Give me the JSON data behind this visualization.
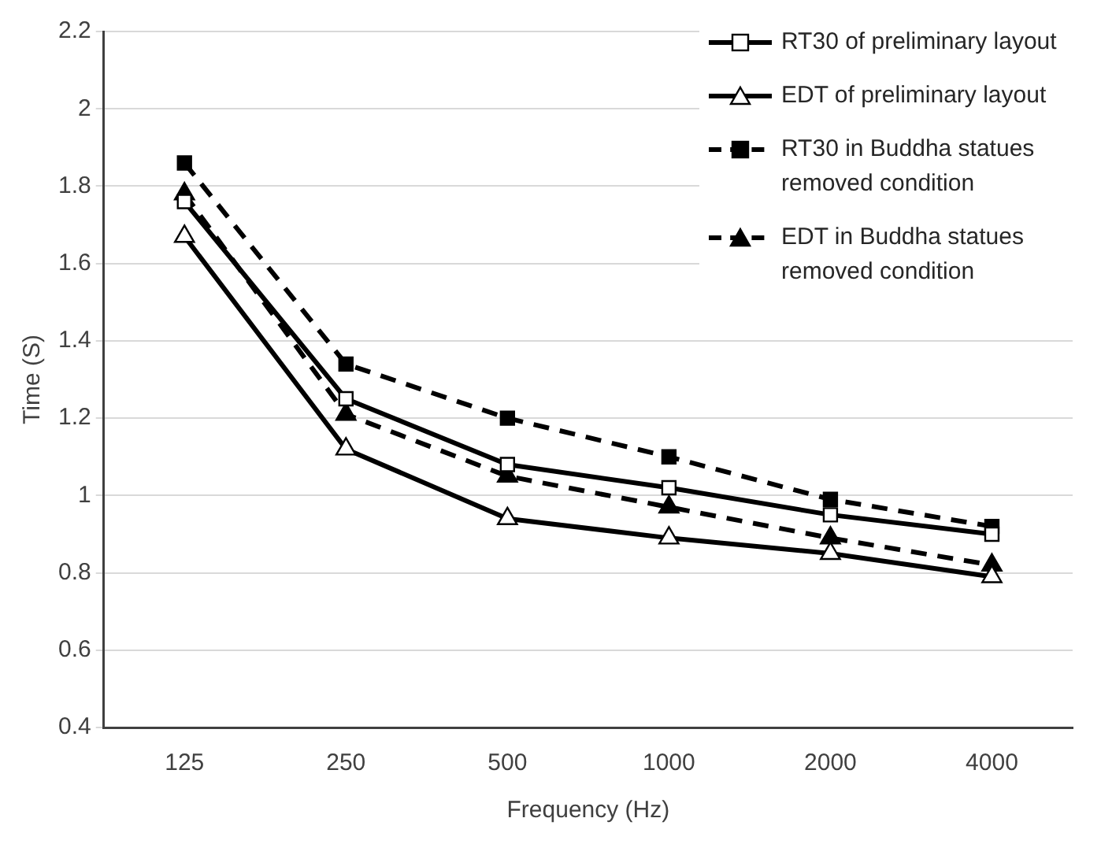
{
  "chart_data": {
    "type": "line",
    "xlabel": "Frequency (Hz)",
    "ylabel": "Time (S)",
    "categories": [
      "125",
      "250",
      "500",
      "1000",
      "2000",
      "4000"
    ],
    "series": [
      {
        "name": "RT30 of preliminary layout",
        "color": "#000000",
        "marker": "square",
        "line_style": "solid",
        "values": [
          1.76,
          1.25,
          1.08,
          1.02,
          0.95,
          0.9
        ]
      },
      {
        "name": "EDT of  preliminary layout",
        "color": "#000000",
        "marker": "triangle",
        "line_style": "solid",
        "values": [
          1.67,
          1.12,
          0.94,
          0.89,
          0.85,
          0.79
        ]
      },
      {
        "name": "RT30 in Buddha statues removed condition",
        "color": "#000000",
        "marker": "square",
        "line_style": "dashed",
        "values": [
          1.86,
          1.34,
          1.2,
          1.1,
          0.99,
          0.92
        ]
      },
      {
        "name": "EDT in Buddha statues removed condition",
        "color": "#000000",
        "marker": "triangle",
        "line_style": "dashed",
        "values": [
          1.78,
          1.21,
          1.05,
          0.97,
          0.89,
          0.82
        ]
      }
    ],
    "ylim": [
      0.4,
      2.2
    ],
    "yticks": [
      0.4,
      0.6,
      0.8,
      1,
      1.2,
      1.4,
      1.6,
      1.8,
      2,
      2.2
    ],
    "grid": "y",
    "legend": "top right"
  }
}
